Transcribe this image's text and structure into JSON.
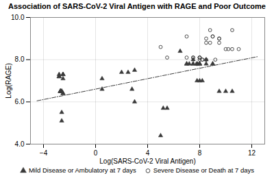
{
  "chart_data": {
    "type": "scatter",
    "title": "Association of SARS-CoV-2 Viral Antigen with RAGE and Poor Outcome",
    "xlabel": "Log(SARS-CoV-2 Viral Antigen)",
    "ylabel": "Log(RAGE)",
    "xlim": [
      -5,
      13
    ],
    "ylim": [
      4,
      10
    ],
    "xticks": [
      -4,
      0,
      4,
      8,
      12
    ],
    "yticks": [
      4,
      6,
      8,
      10
    ],
    "grid": true,
    "legend": "bottom",
    "series": [
      {
        "type": "line",
        "line_style": "dashdot",
        "color": "#3a3a3a",
        "x": [
          -4.5,
          12.5
        ],
        "values": [
          6.05,
          8.15
        ]
      },
      {
        "name": "Mild Disease or Ambulatory at 7 days",
        "type": "scatter",
        "marker": "triangle",
        "color": "#3a3a3a",
        "x": [
          -2.8,
          -2.8,
          -2.8,
          -2.8,
          -2.7,
          -2.7,
          -2.7,
          -2.7,
          -2.7,
          -2.7,
          -2.7,
          -2.6,
          -2.6,
          -2.6,
          -2.6,
          -2.6,
          -2.5,
          -2.5,
          -2.5,
          -2.5,
          -2.5,
          -2.5,
          0.5,
          0.5,
          2.0,
          2.5,
          2.8,
          3.0,
          3.0,
          5.0,
          5.2,
          5.5,
          6.5,
          7.0,
          7.0,
          7.2,
          7.5,
          7.5,
          7.5,
          7.8,
          7.8,
          7.8,
          8.0,
          8.0,
          8.0,
          8.0,
          8.2,
          8.5,
          8.5,
          9.0,
          9.0,
          9.5,
          10.0,
          10.5
        ],
        "values": [
          7.3,
          7.2,
          7.2,
          7.2,
          6.5,
          6.5,
          6.5,
          6.5,
          6.5,
          6.5,
          6.5,
          6.5,
          6.5,
          6.5,
          5.5,
          5.1,
          7.3,
          7.3,
          7.3,
          7.1,
          6.4,
          6.4,
          7.1,
          6.6,
          7.4,
          7.4,
          6.6,
          6.0,
          7.5,
          4.4,
          5.7,
          5.7,
          8.4,
          7.8,
          7.8,
          7.8,
          7.8,
          7.8,
          8.0,
          7.8,
          7.8,
          7.0,
          7.8,
          7.8,
          7.8,
          7.0,
          7.0,
          7.8,
          8.0,
          7.8,
          7.8,
          6.5,
          6.5,
          6.5
        ]
      },
      {
        "name": "Severe Disease or Death at 7 days",
        "type": "scatter",
        "marker": "open_circle",
        "color": "#3a3a3a",
        "x": [
          5.0,
          5.5,
          7.0,
          7.0,
          7.5,
          7.5,
          7.8,
          7.8,
          8.0,
          8.0,
          8.0,
          8.0,
          8.2,
          8.2,
          8.5,
          8.5,
          8.5,
          8.8,
          8.8,
          9.0,
          9.0,
          9.2,
          9.5,
          9.5,
          9.5,
          10.0,
          10.2,
          10.5,
          10.5,
          11.0
        ],
        "values": [
          8.6,
          8.1,
          8.1,
          9.1,
          8.1,
          8.1,
          7.8,
          7.8,
          8.0,
          8.1,
          8.1,
          8.1,
          8.0,
          8.0,
          8.0,
          8.8,
          9.0,
          8.8,
          9.4,
          9.1,
          9.1,
          8.0,
          8.8,
          9.0,
          9.0,
          8.5,
          8.5,
          8.5,
          9.4,
          8.5
        ]
      }
    ]
  }
}
